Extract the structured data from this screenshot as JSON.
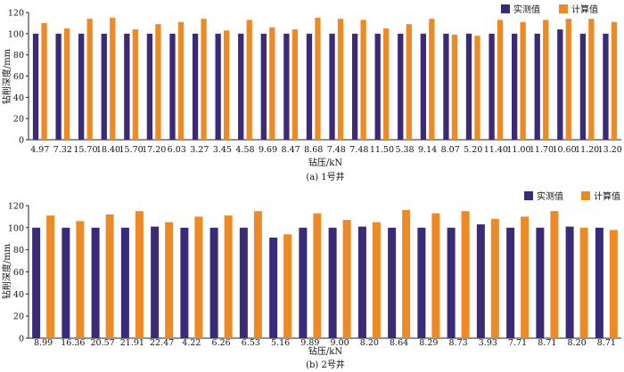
{
  "colors": {
    "measured": "#3b2a78",
    "calculated": "#ee8a26",
    "axis": "#222222"
  },
  "legend": {
    "measured": "实测值",
    "calculated": "计算值"
  },
  "chart_data": [
    {
      "type": "bar",
      "caption": "(a) 1号井",
      "xlabel": "钻压/kN",
      "ylabel": "钻削深度/mm",
      "ylim": [
        0,
        120
      ],
      "yticks": [
        0,
        20,
        40,
        60,
        80,
        100,
        120
      ],
      "grid": false,
      "legend_position": "top-right",
      "categories": [
        "4.97",
        "7.32",
        "15.70",
        "18.40",
        "15.70",
        "17.20",
        "6.03",
        "3.27",
        "3.45",
        "4.58",
        "9.69",
        "8.47",
        "8.68",
        "7.48",
        "7.48",
        "11.50",
        "5.38",
        "9.14",
        "8.07",
        "5.20",
        "11.40",
        "11.00",
        "11.70",
        "10.60",
        "11.20",
        "13.20"
      ],
      "series": [
        {
          "name": "实测值",
          "values": [
            100,
            100,
            100,
            100,
            100,
            100,
            100,
            100,
            100,
            100,
            100,
            100,
            100,
            100,
            100,
            100,
            100,
            100,
            100,
            100,
            100,
            100,
            100,
            104,
            100,
            100
          ]
        },
        {
          "name": "计算值",
          "values": [
            110,
            105,
            114,
            115,
            104,
            109,
            111,
            114,
            103,
            113,
            106,
            104,
            115,
            114,
            113,
            105,
            109,
            114,
            99,
            98,
            113,
            111,
            113,
            114,
            114,
            111
          ]
        }
      ]
    },
    {
      "type": "bar",
      "caption": "(b) 2号井",
      "xlabel": "钻压/kN",
      "ylabel": "钻削深度/mm",
      "ylim": [
        0,
        120
      ],
      "yticks": [
        0,
        20,
        40,
        60,
        80,
        100,
        120
      ],
      "grid": false,
      "legend_position": "top-right",
      "categories": [
        "8.99",
        "16.36",
        "20.57",
        "21.91",
        "22.47",
        "4.22",
        "6.26",
        "6.53",
        "5.16",
        "9.89",
        "9.00",
        "8.20",
        "8.64",
        "8.29",
        "8.73",
        "3.93",
        "7.71",
        "8.71",
        "8.20",
        "8.71"
      ],
      "series": [
        {
          "name": "实测值",
          "values": [
            100,
            100,
            100,
            100,
            101,
            100,
            100,
            100,
            91,
            100,
            100,
            101,
            100,
            100,
            100,
            103,
            100,
            100,
            101,
            100
          ]
        },
        {
          "name": "计算值",
          "values": [
            111,
            106,
            112,
            115,
            105,
            110,
            111,
            115,
            94,
            113,
            107,
            105,
            116,
            113,
            115,
            108,
            110,
            115,
            100,
            98
          ]
        }
      ]
    }
  ]
}
